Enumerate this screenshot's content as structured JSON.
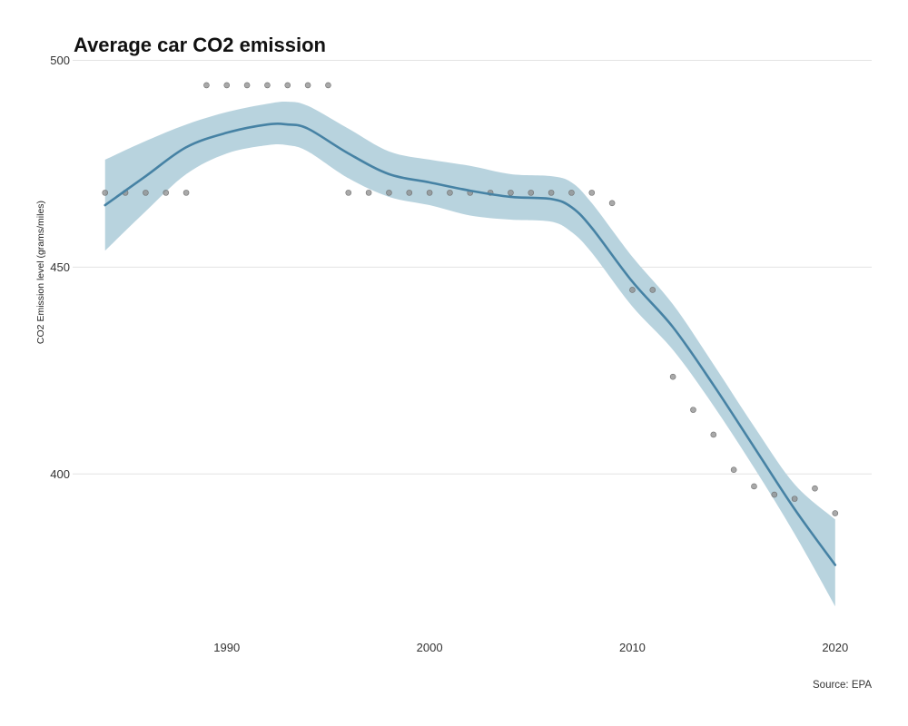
{
  "chart_data": {
    "type": "scatter",
    "title": "Average car CO2 emission",
    "xlabel": "",
    "ylabel": "CO2 Emission level (grams/miles)",
    "caption": "Source: EPA",
    "xlim": [
      1982.4,
      2021.8
    ],
    "ylim": [
      361,
      501
    ],
    "x_ticks": [
      1990,
      2000,
      2010,
      2020
    ],
    "y_ticks": [
      400,
      450,
      500
    ],
    "grid": "horizontal",
    "legend": "none",
    "colors": {
      "points": "#8c8c8c",
      "smooth_line": "#4682a4",
      "confidence_band": "#b8d3de",
      "grid": "#e3e3e3"
    },
    "series": [
      {
        "type": "scatter",
        "x": [
          1984,
          1985,
          1986,
          1987,
          1988,
          1989,
          1990,
          1991,
          1992,
          1993,
          1994,
          1995,
          1996,
          1997,
          1998,
          1999,
          2000,
          2001,
          2002,
          2003,
          2004,
          2005,
          2006,
          2007,
          2008,
          2009,
          2010,
          2011,
          2012,
          2013,
          2014,
          2015,
          2016,
          2017,
          2018,
          2019,
          2020
        ],
        "y": [
          468,
          468,
          468,
          468,
          468,
          494,
          494,
          494,
          494,
          494,
          494,
          494,
          468,
          468,
          468,
          468,
          468,
          468,
          468,
          468,
          468,
          468,
          468,
          468,
          468,
          465.5,
          444.5,
          444.5,
          423.5,
          415.5,
          409.5,
          401,
          397,
          395,
          394,
          396.5,
          390.5
        ]
      },
      {
        "type": "smooth",
        "x": [
          1984,
          1986,
          1988,
          1990,
          1992,
          1993,
          1994,
          1996,
          1998,
          2000,
          2002,
          2004,
          2006,
          2007,
          2008,
          2010,
          2012,
          2014,
          2016,
          2018,
          2020
        ],
        "y": [
          465,
          472,
          479,
          482.5,
          484.5,
          484.5,
          483.5,
          477.5,
          472.5,
          470.5,
          468.5,
          467,
          466.5,
          464.5,
          459.5,
          446.5,
          435.5,
          421.5,
          406.5,
          391.5,
          378
        ],
        "lower": [
          454,
          463.5,
          472.5,
          477.5,
          479.5,
          479.5,
          478,
          471.5,
          467,
          465,
          462.5,
          461.5,
          461,
          458.5,
          453.5,
          440.5,
          430,
          416.5,
          401.5,
          385.5,
          368
        ],
        "upper": [
          476,
          480.5,
          484.5,
          487.5,
          489.5,
          490,
          489,
          483.5,
          478,
          476,
          474.5,
          472.5,
          472,
          470.5,
          465.5,
          452.5,
          441,
          426.5,
          411.5,
          397.5,
          389
        ]
      }
    ]
  }
}
